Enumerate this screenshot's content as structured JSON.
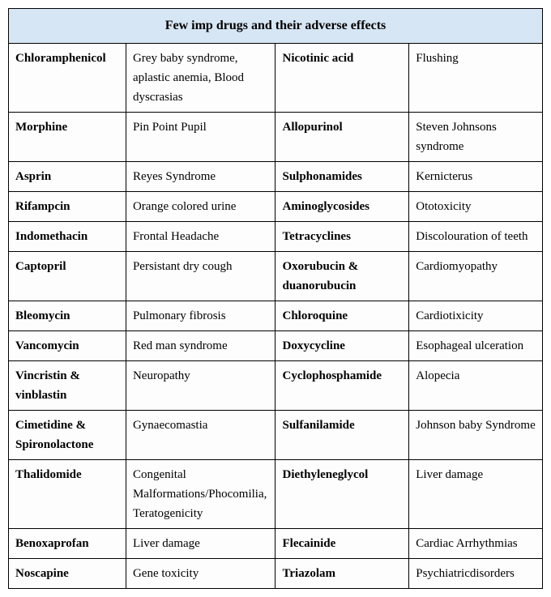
{
  "title": "Few imp drugs and their adverse effects",
  "title_bg": "#d7e6f4",
  "border_color": "#000000",
  "cell_bg": "#fdfdfd",
  "font_family": "Times New Roman",
  "title_fontsize": 16,
  "cell_fontsize": 15,
  "columns": [
    "drug_a",
    "effect_a",
    "drug_b",
    "effect_b"
  ],
  "column_widths_pct": [
    22,
    28,
    25,
    25
  ],
  "rows": [
    {
      "drug_a": "Chloramphenicol",
      "effect_a": "Grey baby syndrome, aplastic anemia, Blood dyscrasias",
      "drug_b": "Nicotinic acid",
      "effect_b": "Flushing"
    },
    {
      "drug_a": "Morphine",
      "effect_a": "Pin Point Pupil",
      "drug_b": "Allopurinol",
      "effect_b": "Steven Johnsons syndrome"
    },
    {
      "drug_a": "Asprin",
      "effect_a": "Reyes Syndrome",
      "drug_b": "Sulphonamides",
      "effect_b": "Kernicterus"
    },
    {
      "drug_a": "Rifampcin",
      "effect_a": "Orange  colored urine",
      "drug_b": "Aminoglycosides",
      "effect_b": "Ototoxicity"
    },
    {
      "drug_a": "Indomethacin",
      "effect_a": "Frontal Headache",
      "drug_b": "Tetracyclines",
      "effect_b": "Discolouration of teeth"
    },
    {
      "drug_a": "Captopril",
      "effect_a": "Persistant dry cough",
      "drug_b": "Oxorubucin & duanorubucin",
      "effect_b": "Cardiomyopathy"
    },
    {
      "drug_a": "Bleomycin",
      "effect_a": "Pulmonary fibrosis",
      "drug_b": "Chloroquine",
      "effect_b": "Cardiotixicity"
    },
    {
      "drug_a": "Vancomycin",
      "effect_a": "Red man syndrome",
      "drug_b": "Doxycycline",
      "effect_b": "Esophageal ulceration"
    },
    {
      "drug_a": "Vincristin & vinblastin",
      "effect_a": "Neuropathy",
      "drug_b": "Cyclophosphamide",
      "effect_b": "Alopecia"
    },
    {
      "drug_a": "Cimetidine & Spironolactone",
      "effect_a": "Gynaecomastia",
      "drug_b": "Sulfanilamide",
      "effect_b": "Johnson baby Syndrome"
    },
    {
      "drug_a": "Thalidomide",
      "effect_a": "Congenital Malformations/Phocomilia, Teratogenicity",
      "drug_b": "Diethyleneglycol",
      "effect_b": "Liver damage"
    },
    {
      "drug_a": "Benoxaprofan",
      "effect_a": "Liver damage",
      "drug_b": "Flecainide",
      "effect_b": "Cardiac Arrhythmias"
    },
    {
      "drug_a": "Noscapine",
      "effect_a": "Gene toxicity",
      "drug_b": "Triazolam",
      "effect_b": "Psychiatricdisorders"
    }
  ]
}
